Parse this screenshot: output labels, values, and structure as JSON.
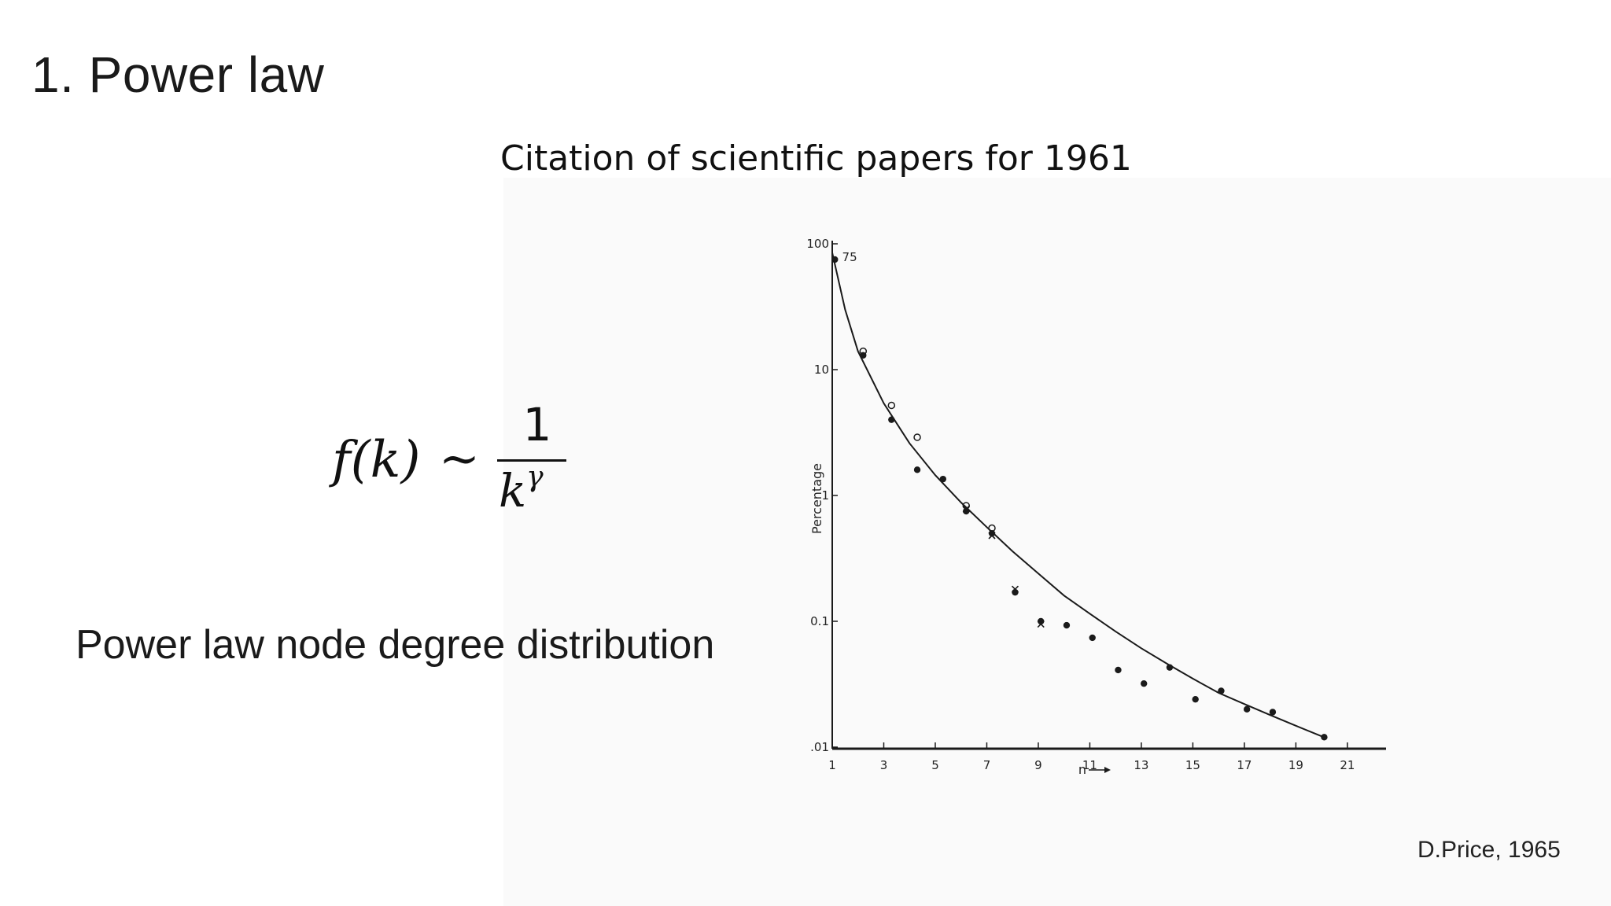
{
  "slide": {
    "title": "1.  Power law",
    "caption": "Power law node degree distribution",
    "source": "D.Price, 1965"
  },
  "formula": {
    "lhs": "f(k)",
    "relation": "~",
    "numerator": "1",
    "denominator_base": "k",
    "denominator_exponent": "γ"
  },
  "chart_data": {
    "type": "scatter",
    "title": "Citation of scientific papers for 1961",
    "xlabel": "n",
    "ylabel": "Percentage",
    "yscale": "log",
    "xlim": [
      1,
      22.5
    ],
    "ylim": [
      0.01,
      100
    ],
    "x_ticks": [
      "1",
      "3",
      "5",
      "7",
      "9",
      "11",
      "13",
      "15",
      "17",
      "19",
      "21"
    ],
    "y_ticks": [
      ".01",
      "0.1",
      "1",
      "10",
      "100"
    ],
    "annotations": [
      {
        "text": "75",
        "x": 1.2,
        "y": 75
      }
    ],
    "series": [
      {
        "marker": "filled",
        "points": [
          [
            1.1,
            75
          ],
          [
            2.2,
            13
          ],
          [
            3.3,
            4
          ],
          [
            4.3,
            1.6
          ],
          [
            5.3,
            1.35
          ],
          [
            6.2,
            0.75
          ],
          [
            7.2,
            0.5
          ],
          [
            8.1,
            0.17
          ],
          [
            9.1,
            0.1
          ],
          [
            10.1,
            0.093
          ],
          [
            11.1,
            0.074
          ],
          [
            12.1,
            0.041
          ],
          [
            13.1,
            0.032
          ],
          [
            14.1,
            0.043
          ],
          [
            15.1,
            0.024
          ],
          [
            16.1,
            0.028
          ],
          [
            17.1,
            0.02
          ],
          [
            18.1,
            0.019
          ],
          [
            20.1,
            0.012
          ]
        ]
      },
      {
        "marker": "open",
        "points": [
          [
            2.2,
            14
          ],
          [
            3.3,
            5.2
          ],
          [
            4.3,
            2.9
          ],
          [
            6.2,
            0.83
          ],
          [
            7.2,
            0.55
          ]
        ]
      },
      {
        "marker": "cross",
        "points": [
          [
            6.2,
            0.78
          ],
          [
            7.2,
            0.48
          ],
          [
            8.1,
            0.18
          ],
          [
            9.1,
            0.095
          ]
        ]
      }
    ],
    "fit_curve": [
      [
        1.0,
        85
      ],
      [
        1.5,
        30
      ],
      [
        2,
        14
      ],
      [
        3,
        5.4
      ],
      [
        4,
        2.6
      ],
      [
        5,
        1.45
      ],
      [
        6,
        0.88
      ],
      [
        7,
        0.56
      ],
      [
        8,
        0.36
      ],
      [
        9,
        0.24
      ],
      [
        10,
        0.16
      ],
      [
        11,
        0.115
      ],
      [
        12,
        0.083
      ],
      [
        13,
        0.061
      ],
      [
        14,
        0.046
      ],
      [
        15,
        0.035
      ],
      [
        16,
        0.027
      ],
      [
        17,
        0.022
      ],
      [
        18,
        0.018
      ],
      [
        19,
        0.0148
      ],
      [
        20,
        0.0122
      ]
    ]
  }
}
